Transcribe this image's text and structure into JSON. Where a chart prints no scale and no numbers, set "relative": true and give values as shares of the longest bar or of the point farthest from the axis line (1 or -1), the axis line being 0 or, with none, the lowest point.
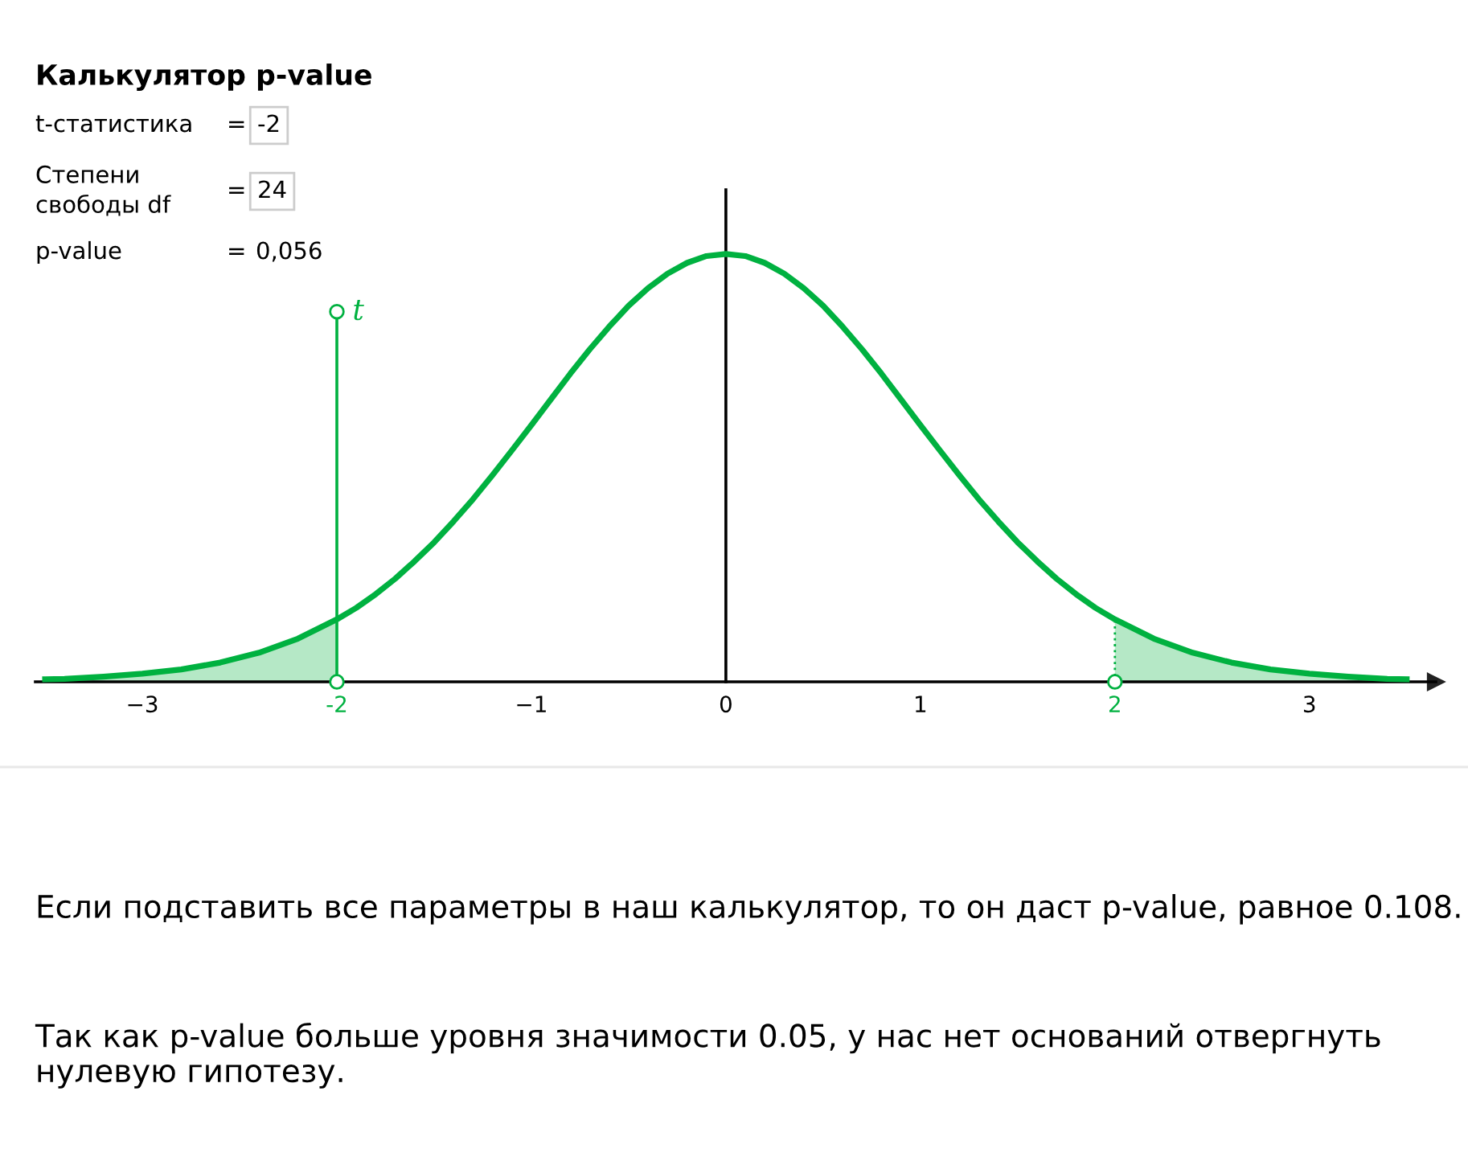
{
  "chart_data": {
    "type": "line",
    "relative": true,
    "title": "Калькулятор p-value",
    "xlim": [
      -3.55,
      3.65
    ],
    "xticks": [
      {
        "value": -3,
        "label": "−3"
      },
      {
        "value": -2,
        "label": "-2"
      },
      {
        "value": -1,
        "label": "−1"
      },
      0,
      1,
      2,
      3
    ],
    "grid": false,
    "legend": false,
    "marker": "none",
    "series": [
      {
        "color": "#00b140",
        "x": [
          -3.5,
          -3.4,
          -3.2,
          -3.0,
          -2.8,
          -2.6,
          -2.4,
          -2.2,
          -2.0,
          -1.9,
          -1.8,
          -1.7,
          -1.6,
          -1.5,
          -1.4,
          -1.3,
          -1.2,
          -1.1,
          -1.0,
          -0.9,
          -0.8,
          -0.7,
          -0.6,
          -0.5,
          -0.4,
          -0.3,
          -0.2,
          -0.1,
          0,
          0.1,
          0.2,
          0.3,
          0.4,
          0.5,
          0.6,
          0.7,
          0.8,
          0.9,
          1.0,
          1.1,
          1.2,
          1.3,
          1.4,
          1.5,
          1.6,
          1.7,
          1.8,
          1.9,
          2.0,
          2.2,
          2.4,
          2.6,
          2.8,
          3.0,
          3.2,
          3.4,
          3.5
        ],
        "values": [
          0.006,
          0.007,
          0.012,
          0.019,
          0.029,
          0.045,
          0.068,
          0.101,
          0.146,
          0.173,
          0.205,
          0.241,
          0.282,
          0.326,
          0.375,
          0.427,
          0.483,
          0.541,
          0.6,
          0.66,
          0.72,
          0.777,
          0.83,
          0.879,
          0.92,
          0.954,
          0.979,
          0.995,
          1,
          0.995,
          0.979,
          0.954,
          0.92,
          0.879,
          0.83,
          0.777,
          0.72,
          0.66,
          0.6,
          0.541,
          0.483,
          0.427,
          0.375,
          0.326,
          0.282,
          0.241,
          0.205,
          0.173,
          0.146,
          0.101,
          0.068,
          0.045,
          0.029,
          0.019,
          0.012,
          0.007,
          0.006
        ]
      },
      {
        "type": "area",
        "color": "#b5e8c6",
        "x": [
          -3.5,
          -3.4,
          -3.2,
          -3.0,
          -2.8,
          -2.6,
          -2.4,
          -2.2,
          -2.0
        ],
        "values": [
          0.006,
          0.007,
          0.012,
          0.019,
          0.029,
          0.045,
          0.068,
          0.101,
          0.146
        ]
      },
      {
        "type": "area",
        "color": "#b5e8c6",
        "x": [
          2.0,
          2.2,
          2.4,
          2.6,
          2.8,
          3.0,
          3.2,
          3.4,
          3.5
        ],
        "values": [
          0.146,
          0.101,
          0.068,
          0.045,
          0.029,
          0.019,
          0.012,
          0.007,
          0.006
        ]
      }
    ],
    "ref_lines": [
      {
        "axis": "x",
        "value": -2,
        "label": "t",
        "color": "#00b140"
      },
      {
        "axis": "x",
        "value": 2,
        "color": "#00b140",
        "line_style": "dotted"
      }
    ],
    "annotations": [
      "t-статистика",
      "=",
      "-2",
      "Степени\nсвободы df",
      "=",
      "24",
      "p-value",
      "=",
      "0,056",
      "Если подставить все параметры в наш калькулятор, то он даст p-value, равное 0.108.",
      "Так как p-value больше уровня значимости 0.05, у нас нет оснований отвергнуть нулевую гипотезу."
    ]
  }
}
